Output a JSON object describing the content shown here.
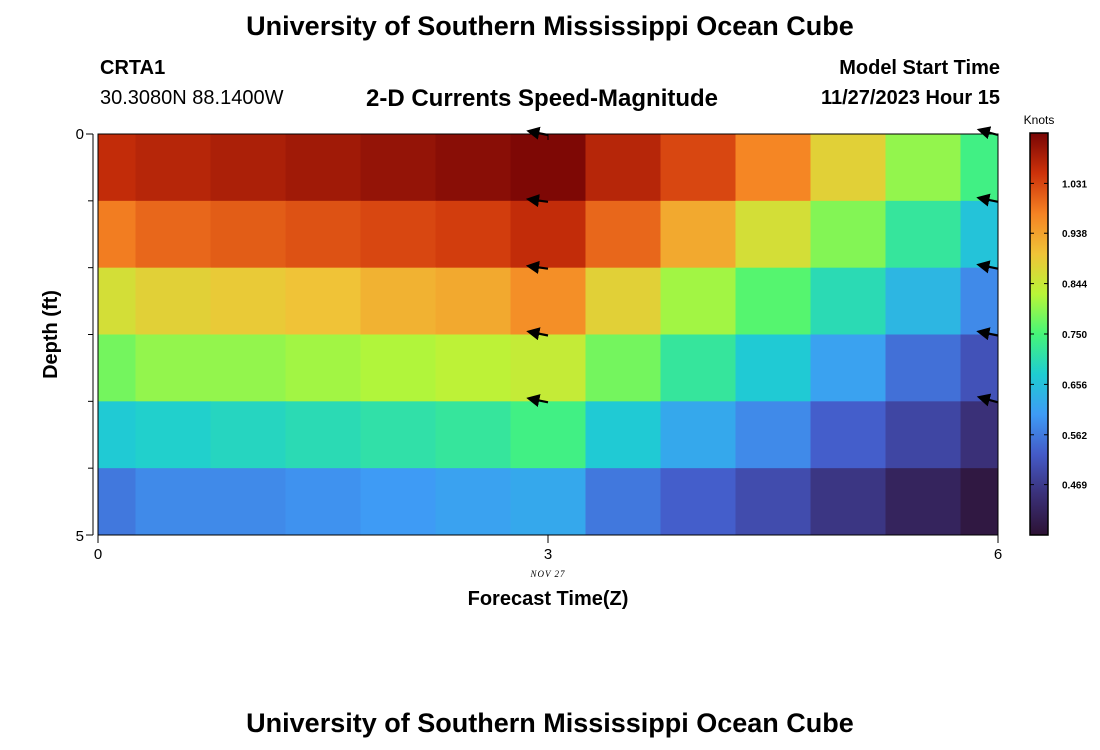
{
  "header": {
    "title": "University of Southern Mississippi Ocean Cube",
    "station": "CRTA1",
    "coords": "30.3080N  88.1400W",
    "plot_title": "2-D Currents Speed-Magnitude",
    "model_start_label": "Model Start Time",
    "model_start_value": "11/27/2023 Hour 15"
  },
  "footer": {
    "title": "University of Southern Mississippi Ocean Cube"
  },
  "chart_data": {
    "type": "heatmap",
    "title": "2-D Currents Speed-Magnitude",
    "xlabel": "Forecast Time(Z)",
    "ylabel": "Depth (ft)",
    "xlim": [
      0,
      6
    ],
    "ylim": [
      0,
      5
    ],
    "x_ticks": [
      0,
      3,
      6
    ],
    "x_tick_labels": [
      "0",
      "3",
      "6"
    ],
    "y_tick_labels": [
      "0",
      "5"
    ],
    "date_label": "NOV 27",
    "colorbar": {
      "title": "Knots",
      "range": [
        0.375,
        1.125
      ],
      "ticks": [
        0.469,
        0.562,
        0.656,
        0.75,
        0.844,
        0.938,
        1.031
      ],
      "tick_labels": [
        "0.469",
        "0.562",
        "0.656",
        "0.750",
        "0.844",
        "0.938",
        "1.031"
      ]
    },
    "columns_x": [
      0,
      0.5,
      1,
      1.5,
      2,
      2.5,
      3,
      3.5,
      4,
      4.5,
      5,
      5.5,
      6
    ],
    "row_depths": [
      0,
      1,
      2,
      3,
      4,
      5
    ],
    "values": [
      [
        1.06,
        1.07,
        1.08,
        1.09,
        1.1,
        1.11,
        1.12,
        1.07,
        1.03,
        0.97,
        0.88,
        0.8,
        0.74
      ],
      [
        0.98,
        1.0,
        1.01,
        1.02,
        1.03,
        1.04,
        1.06,
        1.0,
        0.93,
        0.86,
        0.79,
        0.72,
        0.66
      ],
      [
        0.86,
        0.88,
        0.89,
        0.9,
        0.92,
        0.93,
        0.96,
        0.88,
        0.81,
        0.76,
        0.7,
        0.64,
        0.58
      ],
      [
        0.78,
        0.8,
        0.8,
        0.81,
        0.82,
        0.83,
        0.84,
        0.78,
        0.72,
        0.67,
        0.61,
        0.55,
        0.51
      ],
      [
        0.67,
        0.68,
        0.69,
        0.7,
        0.71,
        0.72,
        0.74,
        0.67,
        0.62,
        0.58,
        0.53,
        0.49,
        0.45
      ],
      [
        0.56,
        0.58,
        0.58,
        0.59,
        0.6,
        0.61,
        0.62,
        0.56,
        0.53,
        0.5,
        0.46,
        0.42,
        0.39
      ]
    ],
    "arrows": [
      {
        "x": 3,
        "depth": 0,
        "dir_deg": 200
      },
      {
        "x": 3,
        "depth": 1,
        "dir_deg": 195
      },
      {
        "x": 3,
        "depth": 2,
        "dir_deg": 195
      },
      {
        "x": 3,
        "depth": 3,
        "dir_deg": 200
      },
      {
        "x": 3,
        "depth": 4,
        "dir_deg": 200
      },
      {
        "x": 6,
        "depth": 0,
        "dir_deg": 205
      },
      {
        "x": 6,
        "depth": 1,
        "dir_deg": 200
      },
      {
        "x": 6,
        "depth": 2,
        "dir_deg": 200
      },
      {
        "x": 6,
        "depth": 3,
        "dir_deg": 200
      },
      {
        "x": 6,
        "depth": 4,
        "dir_deg": 205
      }
    ]
  }
}
